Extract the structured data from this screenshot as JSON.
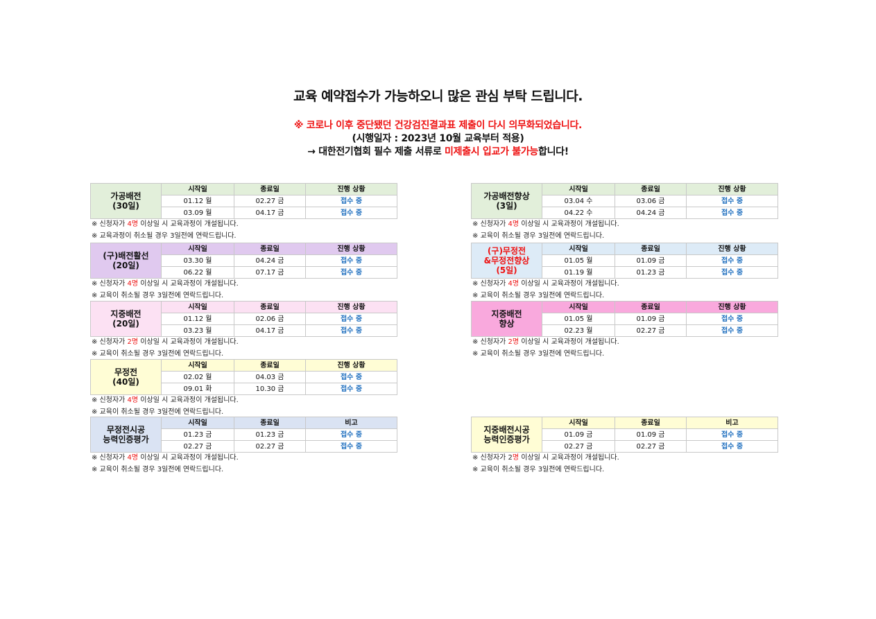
{
  "header": {
    "title": "교육 예약접수가 가능하오니 많은 관심 부탁 드립니다.",
    "notice": "※ 코로나 이후 중단됐던 건강검진결과표 제출이 다시 의무화되었습니다.",
    "effective": "(시행일자 : 2023년 10월 교육부터 적용)",
    "requirement": {
      "prefix": "→ 대한전기협회 필수 제출 서류로 ",
      "highlight": "미제출시 입교가 불가능",
      "suffix": "합니다!"
    }
  },
  "colors": {
    "accent_red": "#ee1111",
    "status_blue": "#1f6fbf"
  },
  "left_column": [
    {
      "name": "가공배전\n(30일)",
      "name_red": false,
      "bg": "#e2efda",
      "headers": [
        "시작일",
        "종료일",
        "진행 상황"
      ],
      "rows": [
        [
          "01.12 월",
          "02.27 금",
          "접수 중"
        ],
        [
          "03.09 월",
          "04.17 금",
          "접수 중"
        ]
      ],
      "note1": [
        {
          "t": "※ 신청자가 ",
          "r": false
        },
        {
          "t": "4명",
          "r": true
        },
        {
          "t": " 이상일 시 교육과정이 개설됩니다.",
          "r": false
        }
      ],
      "note2": "※ 교육과정이 취소될 경우 3일전에 연락드립니다."
    },
    {
      "name": "(구)배전활선\n(20일)",
      "name_red": false,
      "bg": "#e0c9ef",
      "headers": [
        "시작일",
        "종료일",
        "진행 상황"
      ],
      "rows": [
        [
          "03.30 월",
          "04.24 금",
          "접수 중"
        ],
        [
          "06.22 월",
          "07.17 금",
          "접수 중"
        ]
      ],
      "note1": [
        {
          "t": "※ 신청자가 ",
          "r": false
        },
        {
          "t": "4명",
          "r": true
        },
        {
          "t": " 이상일 시 교육과정이 개설됩니다.",
          "r": false
        }
      ],
      "note2": "※ 교육이 취소될 경우 3일전에 연락드립니다."
    },
    {
      "name": "지중배전\n(20일)",
      "name_red": false,
      "bg": "#fce1f3",
      "headers": [
        "시작일",
        "종료일",
        "진행 상황"
      ],
      "rows": [
        [
          "01.12 월",
          "02.06 금",
          "접수 중"
        ],
        [
          "03.23 월",
          "04.17 금",
          "접수 중"
        ]
      ],
      "note1": [
        {
          "t": "※ 신청자가 ",
          "r": false
        },
        {
          "t": "2명",
          "r": true
        },
        {
          "t": " 이상일 시 교육과정이 개설됩니다.",
          "r": false
        }
      ],
      "note2": "※ 교육이 취소될 경우 3일전에 연락드립니다."
    },
    {
      "name": "무정전\n(40일)",
      "name_red": false,
      "bg": "#fffdd5",
      "headers": [
        "시작일",
        "종료일",
        "진행 상황"
      ],
      "rows": [
        [
          "02.02 월",
          "04.03 금",
          "접수 중"
        ],
        [
          "09.01 화",
          "10.30 금",
          "접수 중"
        ]
      ],
      "note1": [
        {
          "t": "※ 신청자가 ",
          "r": false
        },
        {
          "t": "4명",
          "r": true
        },
        {
          "t": " 이상일 시 교육과정이 개설됩니다.",
          "r": false
        }
      ],
      "note2": "※ 교육이 취소될 경우 3일전에 연락드립니다."
    },
    {
      "name": "무정전시공\n능력인증평가",
      "name_red": false,
      "bg": "#dae3f3",
      "headers": [
        "시작일",
        "종료일",
        "비고"
      ],
      "rows": [
        [
          "01.23 금",
          "01.23 금",
          "접수 중"
        ],
        [
          "02.27 금",
          "02.27 금",
          "접수 중"
        ]
      ],
      "note1": [
        {
          "t": "※ 신청자가 ",
          "r": false
        },
        {
          "t": "4명",
          "r": true
        },
        {
          "t": " 이상일 시 교육과정이 개설됩니다.",
          "r": false
        }
      ],
      "note2": "※ 교육이 취소될 경우 3일전에 연락드립니다."
    }
  ],
  "right_column": [
    {
      "name": "가공배전향상\n(3일)",
      "name_red": false,
      "bg": "#e2efda",
      "headers": [
        "시작일",
        "종료일",
        "진행 상황"
      ],
      "rows": [
        [
          "03.04 수",
          "03.06 금",
          "접수 중"
        ],
        [
          "04.22 수",
          "04.24 금",
          "접수 중"
        ]
      ],
      "note1": [
        {
          "t": "※ 신청자가 ",
          "r": false
        },
        {
          "t": "4명",
          "r": true
        },
        {
          "t": " 이상일 시 교육과정이 개설됩니다.",
          "r": false
        }
      ],
      "note2": "※ 교육이 취소될 경우 3일전에 연락드립니다."
    },
    {
      "name": "(구)무정전\n&무정전향상\n(5일)",
      "name_red": true,
      "bg": "#ddebf7",
      "headers": [
        "시작일",
        "종료일",
        "진행 상황"
      ],
      "rows": [
        [
          "01.05 월",
          "01.09 금",
          "접수 중"
        ],
        [
          "01.19 월",
          "01.23 금",
          "접수 중"
        ]
      ],
      "note1": [
        {
          "t": "※ 신청자가 ",
          "r": false
        },
        {
          "t": "4명",
          "r": true
        },
        {
          "t": " 이상일 시 교육과정이 개설됩니다.",
          "r": false
        }
      ],
      "note2": "※ 교육이 취소될 경우 3일전에 연락드립니다."
    },
    {
      "name": "지중배전\n향상",
      "name_red": false,
      "bg": "#f9a9dd",
      "headers": [
        "시작일",
        "종료일",
        "진행 상황"
      ],
      "rows": [
        [
          "01.05 월",
          "01.09 금",
          "접수 중"
        ],
        [
          "02.23 월",
          "02.27 금",
          "접수 중"
        ]
      ],
      "note1": [
        {
          "t": "※ 신청자가 ",
          "r": false
        },
        {
          "t": "2명",
          "r": true
        },
        {
          "t": " 이상일 시 교육과정이 개설됩니다.",
          "r": false
        }
      ],
      "note2": "※ 교육이 취소될 경우 3일전에 연락드립니다."
    },
    {
      "name": "지중배전시공\n능력인증평가",
      "name_red": false,
      "bg": "#fffdd5",
      "headers": [
        "시작일",
        "종료일",
        "비고"
      ],
      "rows": [
        [
          "01.09 금",
          "01.09 금",
          "접수 중"
        ],
        [
          "02.27 금",
          "02.27 금",
          "접수 중"
        ]
      ],
      "note1": [
        {
          "t": "※ 신청자가 2",
          "r": false
        },
        {
          "t": "명",
          "r": true
        },
        {
          "t": " 이상일 시 교육과정이 개설됩니다.",
          "r": false
        }
      ],
      "note2": "※ 교육이 취소될 경우 3일전에 연락드립니다."
    }
  ]
}
